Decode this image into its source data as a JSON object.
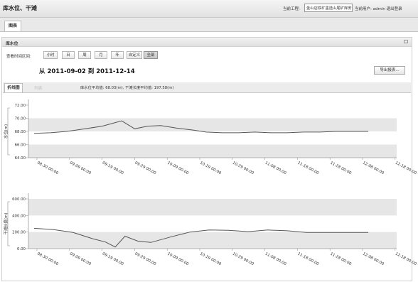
{
  "header": {
    "title": "库水位、干滩",
    "project_label": "当前工程:",
    "project_value": "金山店铁矿墨选山尾矿库安全在线监测",
    "user_label": "当前用户: admin  退出登录"
  },
  "outer_tabs": [
    {
      "label": "图表"
    }
  ],
  "panel": {
    "title": "库水位",
    "range_label": "查看时间区间:",
    "range_buttons": [
      "小时",
      "日",
      "周",
      "月",
      "年",
      "自定义",
      "全部"
    ],
    "active_range": "全部",
    "date_range": "从 2011-09-02 到 2011-12-14",
    "export_label": "导出报表...",
    "inner_tabs": [
      "折线图",
      "列表"
    ],
    "averages": "库水位平均值: 68.03(m), 干滩长度平均值: 197.58(m)"
  },
  "colors": {
    "line": "#555555",
    "band": "#e6e6e6",
    "axis": "#999999"
  },
  "chart_data": [
    {
      "type": "line",
      "ylabel": "水位(m)",
      "ylim": [
        64,
        72
      ],
      "yticks": [
        "64.00",
        "66.00",
        "68.00",
        "70.00",
        "72.00"
      ],
      "xticks": [
        "08-30 00:00",
        "09-09 00:00",
        "09-19 00:00",
        "09-29 00:00",
        "10-09 00:00",
        "10-19 00:00",
        "10-29 00:00",
        "11-08 00:00",
        "11-18 00:00",
        "11-28 00:00",
        "12-08 00:00",
        "12-18 00:00"
      ],
      "x_day_offsets": [
        0,
        5,
        10,
        13,
        17,
        21,
        24,
        27,
        31,
        35,
        39,
        44,
        49,
        53,
        58,
        63,
        68,
        73,
        78,
        83,
        88,
        93,
        98,
        103
      ],
      "values": [
        67.7,
        67.8,
        68.0,
        68.2,
        68.5,
        68.8,
        69.2,
        69.6,
        68.4,
        68.8,
        68.9,
        68.5,
        68.2,
        67.9,
        67.8,
        67.8,
        67.9,
        67.8,
        67.8,
        67.9,
        67.9,
        68.0,
        68.0,
        68.0
      ]
    },
    {
      "type": "line",
      "ylabel": "干滩长度(m)",
      "ylim": [
        0,
        600
      ],
      "yticks": [
        "0.00",
        "200.00",
        "400.00",
        "600.00"
      ],
      "xticks": [
        "08-30 00:00",
        "09-09 00:00",
        "09-19 00:00",
        "09-29 00:00",
        "10-09 00:00",
        "10-19 00:00",
        "10-29 00:00",
        "11-08 00:00",
        "11-18 00:00",
        "11-28 00:00",
        "12-08 00:00",
        "12-18 00:00"
      ],
      "x_day_offsets": [
        0,
        6,
        12,
        18,
        22,
        25,
        28,
        32,
        36,
        42,
        48,
        54,
        60,
        66,
        72,
        78,
        84,
        90,
        96,
        103
      ],
      "values": [
        245,
        230,
        195,
        120,
        80,
        20,
        150,
        90,
        75,
        140,
        200,
        225,
        220,
        205,
        225,
        215,
        195,
        195,
        195,
        195
      ]
    }
  ]
}
